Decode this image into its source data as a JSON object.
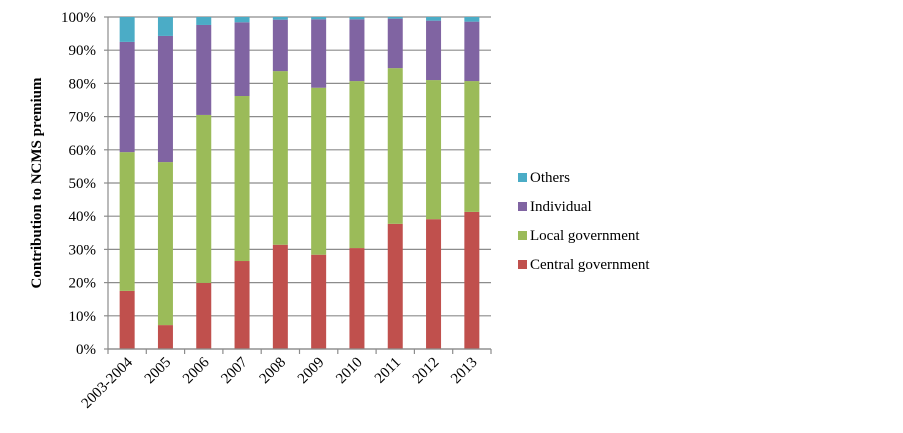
{
  "chart_data": {
    "type": "bar",
    "stacked": true,
    "percent_stacked": true,
    "title": "",
    "xlabel": "",
    "ylabel": "Contribution to NCMS premium",
    "ylim": [
      0,
      100
    ],
    "yticks": [
      "0%",
      "10%",
      "20%",
      "30%",
      "40%",
      "50%",
      "60%",
      "70%",
      "80%",
      "90%",
      "100%"
    ],
    "grid": true,
    "legend_position": "right",
    "categories": [
      "2003-2004",
      "2005",
      "2006",
      "2007",
      "2008",
      "2009",
      "2010",
      "2011",
      "2012",
      "2013"
    ],
    "series": [
      {
        "name": "Central government",
        "color": "#c0504d",
        "values": [
          17.5,
          7.2,
          19.9,
          26.5,
          31.4,
          28.4,
          30.4,
          37.7,
          39.1,
          41.3
        ]
      },
      {
        "name": "Local government",
        "color": "#9bbb59",
        "values": [
          41.8,
          49.1,
          50.6,
          49.7,
          52.3,
          50.3,
          50.3,
          46.9,
          41.9,
          39.4
        ]
      },
      {
        "name": "Individual",
        "color": "#8064a2",
        "values": [
          33.2,
          38.0,
          27.1,
          22.2,
          15.5,
          20.6,
          18.6,
          14.9,
          17.9,
          17.9
        ]
      },
      {
        "name": "Others",
        "color": "#4bacc6",
        "values": [
          7.5,
          5.7,
          2.4,
          1.6,
          0.8,
          0.7,
          0.7,
          0.5,
          1.1,
          1.4
        ]
      }
    ],
    "legend_order": [
      "Others",
      "Individual",
      "Local government",
      "Central government"
    ]
  }
}
